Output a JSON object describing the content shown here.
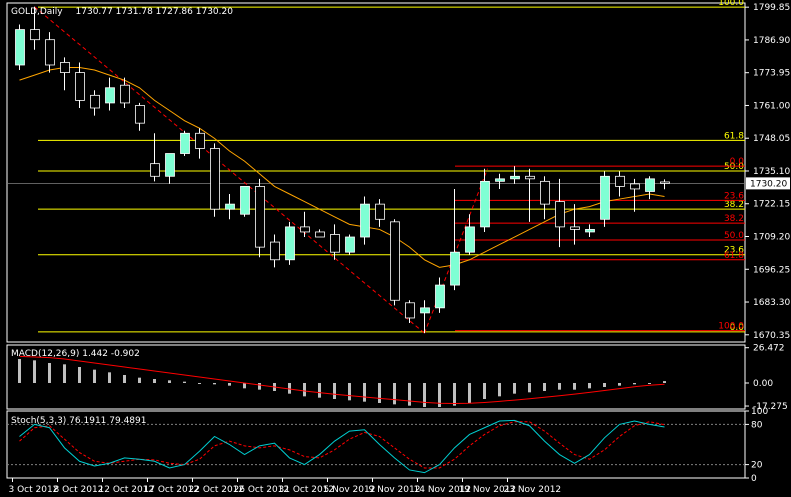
{
  "window": {
    "title": "GOLD,Daily",
    "ohlc": "1730.77 1731.78 1727.86 1730.20",
    "current_price_label": "1730.20"
  },
  "colors": {
    "background": "#000000",
    "frame": "#ffffff",
    "bull_candle": "#7fffd4",
    "bear_candle": "#000000",
    "candle_outline": "#ffffff",
    "moving_average": "#ffa500",
    "fib_main": "#ffff00",
    "fib_secondary": "#ff0000",
    "trend_line": "#ff0000",
    "macd_hist": "#c0c0c0",
    "macd_signal": "#ff0000",
    "stoch_main": "#00ced1",
    "stoch_signal": "#ff0000"
  },
  "chart_data": {
    "type": "candlestick",
    "symbol": "GOLD",
    "timeframe": "Daily",
    "x_labels": [
      "3 Oct 2012",
      "8 Oct 2012",
      "12 Oct 2012",
      "17 Oct 2012",
      "22 Oct 2012",
      "26 Oct 2012",
      "31 Oct 2012",
      "5 Nov 2012",
      "9 Nov 2012",
      "14 Nov 2012",
      "19 Nov 2012",
      "23 Nov 2012"
    ],
    "x_label_index": [
      0,
      3,
      6,
      9,
      12,
      15,
      18,
      21,
      24,
      27,
      30,
      33
    ],
    "y_ticks": [
      1799.85,
      1786.9,
      1773.95,
      1761.0,
      1748.05,
      1735.1,
      1722.15,
      1709.2,
      1696.25,
      1683.3,
      1670.35
    ],
    "ylim": [
      1667.5,
      1801.5
    ],
    "candles": [
      {
        "o": 1777.0,
        "h": 1793.0,
        "l": 1775.0,
        "c": 1791.0
      },
      {
        "o": 1791.0,
        "h": 1800.0,
        "l": 1783.0,
        "c": 1787.0
      },
      {
        "o": 1787.0,
        "h": 1790.0,
        "l": 1774.0,
        "c": 1777.0
      },
      {
        "o": 1778.0,
        "h": 1780.0,
        "l": 1767.0,
        "c": 1774.0
      },
      {
        "o": 1774.0,
        "h": 1778.0,
        "l": 1760.0,
        "c": 1763.0
      },
      {
        "o": 1765.0,
        "h": 1767.0,
        "l": 1757.0,
        "c": 1760.0
      },
      {
        "o": 1762.0,
        "h": 1772.0,
        "l": 1759.0,
        "c": 1768.0
      },
      {
        "o": 1769.0,
        "h": 1772.0,
        "l": 1760.0,
        "c": 1762.0
      },
      {
        "o": 1761.0,
        "h": 1762.0,
        "l": 1751.0,
        "c": 1754.0
      },
      {
        "o": 1738.0,
        "h": 1750.0,
        "l": 1731.0,
        "c": 1733.0
      },
      {
        "o": 1733.0,
        "h": 1742.0,
        "l": 1730.0,
        "c": 1742.0
      },
      {
        "o": 1742.0,
        "h": 1751.0,
        "l": 1741.0,
        "c": 1750.0
      },
      {
        "o": 1750.0,
        "h": 1752.0,
        "l": 1740.0,
        "c": 1744.0
      },
      {
        "o": 1744.0,
        "h": 1746.0,
        "l": 1717.0,
        "c": 1720.0
      },
      {
        "o": 1720.0,
        "h": 1726.0,
        "l": 1716.0,
        "c": 1722.0
      },
      {
        "o": 1718.0,
        "h": 1729.0,
        "l": 1717.0,
        "c": 1729.0
      },
      {
        "o": 1729.0,
        "h": 1732.0,
        "l": 1701.0,
        "c": 1705.0
      },
      {
        "o": 1707.0,
        "h": 1710.0,
        "l": 1697.0,
        "c": 1700.0
      },
      {
        "o": 1700.0,
        "h": 1715.0,
        "l": 1698.0,
        "c": 1713.0
      },
      {
        "o": 1713.0,
        "h": 1719.0,
        "l": 1709.0,
        "c": 1711.0
      },
      {
        "o": 1711.0,
        "h": 1712.0,
        "l": 1709.0,
        "c": 1709.0
      },
      {
        "o": 1710.0,
        "h": 1714.0,
        "l": 1700.0,
        "c": 1703.0
      },
      {
        "o": 1703.0,
        "h": 1710.0,
        "l": 1702.0,
        "c": 1709.0
      },
      {
        "o": 1709.0,
        "h": 1725.0,
        "l": 1706.0,
        "c": 1722.0
      },
      {
        "o": 1722.0,
        "h": 1724.0,
        "l": 1713.0,
        "c": 1716.0
      },
      {
        "o": 1715.0,
        "h": 1716.0,
        "l": 1682.0,
        "c": 1684.0
      },
      {
        "o": 1683.0,
        "h": 1684.0,
        "l": 1675.0,
        "c": 1677.0
      },
      {
        "o": 1679.0,
        "h": 1684.0,
        "l": 1671.0,
        "c": 1681.0
      },
      {
        "o": 1681.0,
        "h": 1693.0,
        "l": 1679.0,
        "c": 1690.0
      },
      {
        "o": 1690.0,
        "h": 1728.0,
        "l": 1688.0,
        "c": 1703.0
      },
      {
        "o": 1703.0,
        "h": 1718.0,
        "l": 1702.0,
        "c": 1713.0
      },
      {
        "o": 1713.0,
        "h": 1736.0,
        "l": 1711.0,
        "c": 1731.0
      },
      {
        "o": 1731.0,
        "h": 1734.0,
        "l": 1728.0,
        "c": 1732.0
      },
      {
        "o": 1732.0,
        "h": 1737.0,
        "l": 1730.0,
        "c": 1733.0
      },
      {
        "o": 1733.0,
        "h": 1736.0,
        "l": 1715.0,
        "c": 1732.0
      },
      {
        "o": 1731.0,
        "h": 1733.0,
        "l": 1716.0,
        "c": 1722.0
      },
      {
        "o": 1723.0,
        "h": 1732.0,
        "l": 1705.0,
        "c": 1713.0
      },
      {
        "o": 1713.0,
        "h": 1722.0,
        "l": 1706.0,
        "c": 1712.0
      },
      {
        "o": 1711.0,
        "h": 1714.0,
        "l": 1709.0,
        "c": 1712.0
      },
      {
        "o": 1716.0,
        "h": 1735.0,
        "l": 1713.0,
        "c": 1733.0
      },
      {
        "o": 1733.0,
        "h": 1735.0,
        "l": 1725.0,
        "c": 1729.0
      },
      {
        "o": 1730.0,
        "h": 1732.0,
        "l": 1719.0,
        "c": 1728.0
      },
      {
        "o": 1727.0,
        "h": 1733.0,
        "l": 1724.0,
        "c": 1732.0
      },
      {
        "o": 1730.77,
        "h": 1731.78,
        "l": 1727.86,
        "c": 1730.2
      }
    ],
    "moving_average": [
      1771,
      1773,
      1775,
      1776,
      1776,
      1775,
      1773,
      1771,
      1768,
      1763,
      1759,
      1755,
      1752,
      1748,
      1743,
      1739,
      1734,
      1729,
      1726,
      1723,
      1720,
      1717,
      1714,
      1713,
      1712,
      1709,
      1705,
      1700,
      1697,
      1698,
      1700,
      1703,
      1706,
      1709,
      1712,
      1715,
      1718,
      1720,
      1721,
      1723,
      1724,
      1725,
      1726,
      1725
    ],
    "fib_main": {
      "levels": [
        {
          "label": "100.0",
          "price": 1799.85
        },
        {
          "label": "61.8",
          "price": 1747.2
        },
        {
          "label": "50.0",
          "price": 1735.1
        },
        {
          "label": "38.2",
          "price": 1720.0
        },
        {
          "label": "23.6",
          "price": 1702.0
        },
        {
          "label": "0.0",
          "price": 1671.5
        }
      ]
    },
    "fib_secondary": {
      "levels": [
        {
          "label": "0.0",
          "price": 1737.0
        },
        {
          "label": "23.6",
          "price": 1723.5
        },
        {
          "label": "38.2",
          "price": 1714.5
        },
        {
          "label": "50.0",
          "price": 1707.8
        },
        {
          "label": "61.8",
          "price": 1700.0
        },
        {
          "label": "100.0",
          "price": 1672.0
        }
      ]
    },
    "current_price": 1730.2,
    "macd": {
      "label": "MACD(12,26,9) 1.442 -0.902",
      "y_ticks": [
        26.472,
        0.0,
        -17.275
      ],
      "ylim": [
        -19.5,
        28.5
      ],
      "histogram": [
        18,
        17,
        15,
        14,
        12,
        10,
        8,
        6,
        4,
        3,
        2,
        1,
        0,
        -1,
        -2,
        -4,
        -5,
        -6,
        -8,
        -10,
        -11,
        -12,
        -13,
        -14,
        -15,
        -16,
        -17,
        -18,
        -18,
        -17,
        -15,
        -12,
        -10,
        -8,
        -7,
        -6,
        -5,
        -5,
        -4,
        -3,
        -2,
        -1,
        0,
        1.442
      ],
      "signal": [
        20,
        19.5,
        19,
        18,
        16.5,
        15,
        13.5,
        12,
        10.5,
        9,
        7.5,
        6,
        4.5,
        3,
        1.5,
        0,
        -1.5,
        -3,
        -4.5,
        -6,
        -7.2,
        -8.4,
        -9.5,
        -10.5,
        -11.5,
        -12.5,
        -13.5,
        -14.5,
        -15.2,
        -15.4,
        -15.2,
        -14.6,
        -13.8,
        -12.8,
        -11.8,
        -10.7,
        -9.6,
        -8.3,
        -7,
        -5.6,
        -4.2,
        -2.8,
        -1.7,
        -0.902
      ]
    },
    "stoch": {
      "label": "Stoch(5,3,3) 76.1911 79.4891",
      "y_ticks": [
        "100",
        "80",
        "20",
        "0"
      ],
      "ylim": [
        0,
        100
      ],
      "main": [
        62,
        80,
        75,
        45,
        25,
        18,
        22,
        30,
        28,
        25,
        15,
        20,
        40,
        62,
        50,
        35,
        48,
        52,
        30,
        20,
        35,
        55,
        70,
        72,
        50,
        30,
        12,
        8,
        20,
        45,
        65,
        75,
        85,
        86,
        78,
        55,
        35,
        22,
        35,
        60,
        80,
        85,
        80,
        76.1911
      ],
      "signal": [
        55,
        75,
        78,
        58,
        38,
        25,
        22,
        25,
        28,
        27,
        22,
        20,
        28,
        48,
        55,
        48,
        45,
        48,
        42,
        32,
        30,
        42,
        58,
        68,
        62,
        45,
        28,
        15,
        15,
        28,
        48,
        65,
        78,
        84,
        84,
        70,
        52,
        35,
        28,
        42,
        62,
        78,
        84,
        79.4891
      ]
    }
  }
}
